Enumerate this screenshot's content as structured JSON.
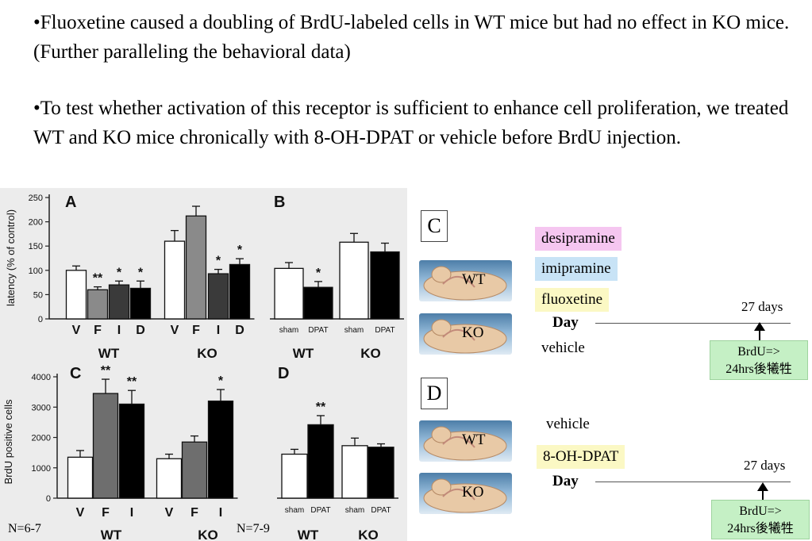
{
  "slide": {
    "bullet_1": "•Fluoxetine caused a doubling of BrdU-labeled cells in WT mice but had no effect in KO mice. (Further paralleling the behavioral data)",
    "bullet_2": "•To test whether activation of this receptor is sufficient to enhance cell proliferation, we treated WT and KO mice chronically with 8-OH-DPAT or vehicle before BrdU injection."
  },
  "figure": {
    "n_left": "N=6-7",
    "n_right": "N=7-9"
  },
  "chart_data": [
    {
      "type": "bar",
      "panel": "A",
      "ylabel": "latency (% of control)",
      "ylim": [
        0,
        250
      ],
      "yticks": [
        0,
        50,
        100,
        150,
        200,
        250
      ],
      "categories": [
        "V",
        "F",
        "I",
        "D",
        "V",
        "F",
        "I",
        "D"
      ],
      "groups": [
        "WT",
        "KO"
      ],
      "values": [
        100,
        60,
        70,
        63,
        160,
        212,
        93,
        112
      ],
      "errors": [
        9,
        6,
        8,
        15,
        22,
        20,
        9,
        12
      ],
      "significance": [
        "",
        "**",
        "*",
        "*",
        "",
        "",
        "*",
        "*"
      ],
      "colors": [
        "#ffffff",
        "#8a8a8a",
        "#3a3a3a",
        "#000000",
        "#ffffff",
        "#8a8a8a",
        "#3a3a3a",
        "#000000"
      ]
    },
    {
      "type": "bar",
      "panel": "B",
      "ylim": [
        0,
        250
      ],
      "categories": [
        "sham",
        "DPAT",
        "sham",
        "DPAT"
      ],
      "groups": [
        "WT",
        "KO"
      ],
      "values": [
        104,
        65,
        158,
        138
      ],
      "errors": [
        12,
        12,
        18,
        18
      ],
      "significance": [
        "",
        "*",
        "",
        ""
      ],
      "colors": [
        "#ffffff",
        "#000000",
        "#ffffff",
        "#000000"
      ]
    },
    {
      "type": "bar",
      "panel": "C",
      "ylabel": "BrdU positive cells",
      "ylim": [
        0,
        4000
      ],
      "yticks": [
        0,
        1000,
        2000,
        3000,
        4000
      ],
      "categories": [
        "V",
        "F",
        "I",
        "V",
        "F",
        "I"
      ],
      "groups": [
        "WT",
        "KO"
      ],
      "values": [
        1350,
        3450,
        3100,
        1300,
        1850,
        3200
      ],
      "errors": [
        220,
        470,
        450,
        150,
        200,
        380
      ],
      "significance": [
        "",
        "**",
        "**",
        "",
        "",
        "*"
      ],
      "colors": [
        "#ffffff",
        "#6e6e6e",
        "#000000",
        "#ffffff",
        "#6e6e6e",
        "#000000"
      ]
    },
    {
      "type": "bar",
      "panel": "D",
      "ylim": [
        0,
        4000
      ],
      "categories": [
        "sham",
        "DPAT",
        "sham",
        "DPAT"
      ],
      "groups": [
        "WT",
        "KO"
      ],
      "values": [
        1450,
        2420,
        1730,
        1680
      ],
      "errors": [
        160,
        300,
        250,
        110
      ],
      "significance": [
        "",
        "**",
        "",
        ""
      ],
      "colors": [
        "#ffffff",
        "#000000",
        "#ffffff",
        "#000000"
      ]
    }
  ],
  "protocol": {
    "c": {
      "panel_label": "C",
      "mouse_wt": "WT",
      "mouse_ko": "KO",
      "treatments": [
        "desipramine",
        "imipramine",
        "fluoxetine"
      ],
      "vehicle": "vehicle",
      "day_label": "Day",
      "days": "27 days",
      "brdu_line1": "BrdU=>",
      "brdu_line2": "24hrs後犧牲"
    },
    "d": {
      "panel_label": "D",
      "mouse_wt": "WT",
      "mouse_ko": "KO",
      "vehicle": "vehicle",
      "treatment": "8-OH-DPAT",
      "day_label": "Day",
      "days": "27 days",
      "brdu_line1": "BrdU=>",
      "brdu_line2": "24hrs後犧牲"
    }
  }
}
